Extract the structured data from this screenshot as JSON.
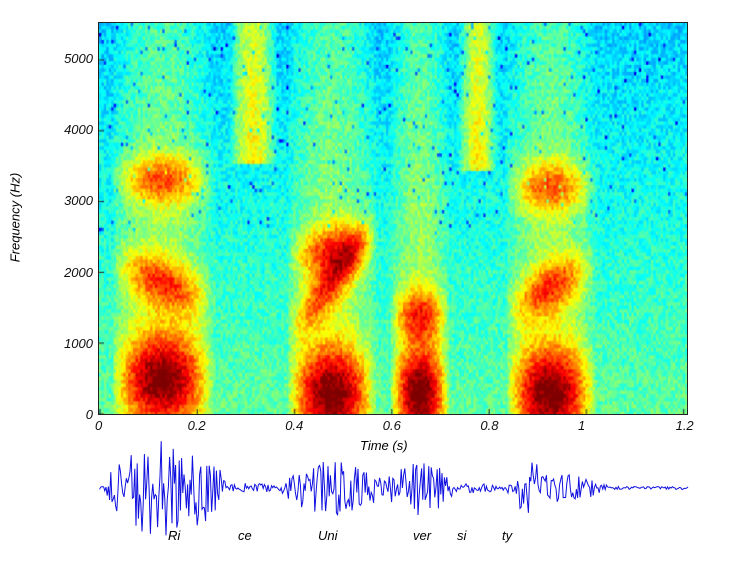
{
  "chart_data": {
    "type": "heatmap",
    "title": "",
    "xlabel": "Time (s)",
    "ylabel": "Frequency (Hz)",
    "xlim": [
      0,
      1.22
    ],
    "ylim": [
      0,
      5500
    ],
    "xticks": [
      0,
      0.2,
      0.4,
      0.6,
      0.8,
      1,
      1.2
    ],
    "xtick_labels": [
      "0",
      "0.2",
      "0.4",
      "0.6",
      "0.8",
      "1",
      "1.2"
    ],
    "yticks": [
      0,
      1000,
      2000,
      3000,
      4000,
      5000
    ],
    "ytick_labels": [
      "0",
      "1000",
      "2000",
      "3000",
      "4000",
      "5000"
    ],
    "colormap": "jet",
    "segments": [
      {
        "label": "Ri",
        "start": 0.03,
        "end": 0.27,
        "type": "voiced",
        "formants_hz": [
          [
            500,
            500
          ],
          [
            2100,
            1500
          ],
          [
            3300,
            3300
          ]
        ]
      },
      {
        "label": "ce",
        "start": 0.27,
        "end": 0.38,
        "type": "fricative",
        "band_hz": [
          3500,
          5500
        ]
      },
      {
        "label": "Uni",
        "start": 0.39,
        "end": 0.6,
        "type": "voiced",
        "formants_hz": [
          [
            300,
            300
          ],
          [
            1200,
            2800
          ],
          [
            2200,
            2500
          ]
        ]
      },
      {
        "label": "ver",
        "start": 0.6,
        "end": 0.74,
        "type": "voiced",
        "formants_hz": [
          [
            300,
            300
          ],
          [
            1400,
            1400
          ]
        ]
      },
      {
        "label": "si",
        "start": 0.74,
        "end": 0.83,
        "type": "fricative",
        "band_hz": [
          3400,
          5500
        ]
      },
      {
        "label": "ty",
        "start": 0.84,
        "end": 1.05,
        "type": "voiced",
        "formants_hz": [
          [
            300,
            300
          ],
          [
            1500,
            2200
          ],
          [
            3200,
            3200
          ]
        ]
      }
    ],
    "waveform_color": "#1010e0"
  }
}
